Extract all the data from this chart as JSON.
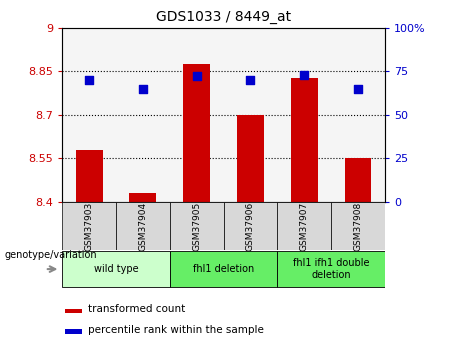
{
  "title": "GDS1033 / 8449_at",
  "samples": [
    "GSM37903",
    "GSM37904",
    "GSM37905",
    "GSM37906",
    "GSM37907",
    "GSM37908"
  ],
  "red_values": [
    8.58,
    8.43,
    8.875,
    8.7,
    8.825,
    8.55
  ],
  "blue_values": [
    70,
    65,
    72,
    70,
    73,
    65
  ],
  "ylim_left": [
    8.4,
    9.0
  ],
  "ylim_right": [
    0,
    100
  ],
  "yticks_left": [
    8.4,
    8.55,
    8.7,
    8.85,
    9.0
  ],
  "yticks_right": [
    0,
    25,
    50,
    75,
    100
  ],
  "ytick_labels_left": [
    "8.4",
    "8.55",
    "8.7",
    "8.85",
    "9"
  ],
  "ytick_labels_right": [
    "0",
    "25",
    "50",
    "75",
    "100%"
  ],
  "hlines": [
    8.55,
    8.7,
    8.85
  ],
  "groups": [
    {
      "label": "wild type",
      "indices": [
        0,
        1
      ],
      "color": "#ccffcc"
    },
    {
      "label": "fhl1 deletion",
      "indices": [
        2,
        3
      ],
      "color": "#66ee66"
    },
    {
      "label": "fhl1 ifh1 double\ndeletion",
      "indices": [
        4,
        5
      ],
      "color": "#66ee66"
    }
  ],
  "bar_color": "#cc0000",
  "dot_color": "#0000cc",
  "bar_width": 0.5,
  "dot_size": 30,
  "legend_red_label": "transformed count",
  "legend_blue_label": "percentile rank within the sample",
  "genotype_label": "genotype/variation",
  "left_tick_color": "#cc0000",
  "right_tick_color": "#0000cc",
  "plot_bg": "#f5f5f5",
  "sample_box_color": "#d8d8d8",
  "arrow_color": "#888888"
}
